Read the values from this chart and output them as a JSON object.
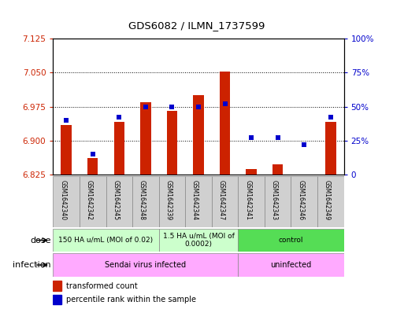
{
  "title": "GDS6082 / ILMN_1737599",
  "samples": [
    "GSM1642340",
    "GSM1642342",
    "GSM1642345",
    "GSM1642348",
    "GSM1642339",
    "GSM1642344",
    "GSM1642347",
    "GSM1642341",
    "GSM1642343",
    "GSM1642346",
    "GSM1642349"
  ],
  "bar_values": [
    6.935,
    6.862,
    6.942,
    6.985,
    6.965,
    7.0,
    7.053,
    6.838,
    6.848,
    6.824,
    6.942
  ],
  "dot_values": [
    40,
    15,
    42,
    50,
    50,
    50,
    52,
    27,
    27,
    22,
    42
  ],
  "bar_base": 6.825,
  "y_min": 6.825,
  "y_max": 7.125,
  "y_ticks": [
    6.825,
    6.9,
    6.975,
    7.05,
    7.125
  ],
  "y2_ticks": [
    0,
    25,
    50,
    75,
    100
  ],
  "bar_color": "#cc2200",
  "dot_color": "#0000cc",
  "dose_groups": [
    {
      "label": "150 HA u/mL (MOI of 0.02)",
      "start": 0,
      "end": 4,
      "color": "#ccffcc"
    },
    {
      "label": "1.5 HA u/mL (MOI of\n0.0002)",
      "start": 4,
      "end": 7,
      "color": "#ccffcc"
    },
    {
      "label": "control",
      "start": 7,
      "end": 11,
      "color": "#55dd55"
    }
  ],
  "infection_groups": [
    {
      "label": "Sendai virus infected",
      "start": 0,
      "end": 7
    },
    {
      "label": "uninfected",
      "start": 7,
      "end": 11
    }
  ],
  "tick_label_color_left": "#cc2200",
  "tick_label_color_right": "#0000cc",
  "sample_bg": "#d0d0d0",
  "dose_light_color": "#ccffcc",
  "dose_dark_color": "#55dd55",
  "infection_color": "#ffaaff"
}
